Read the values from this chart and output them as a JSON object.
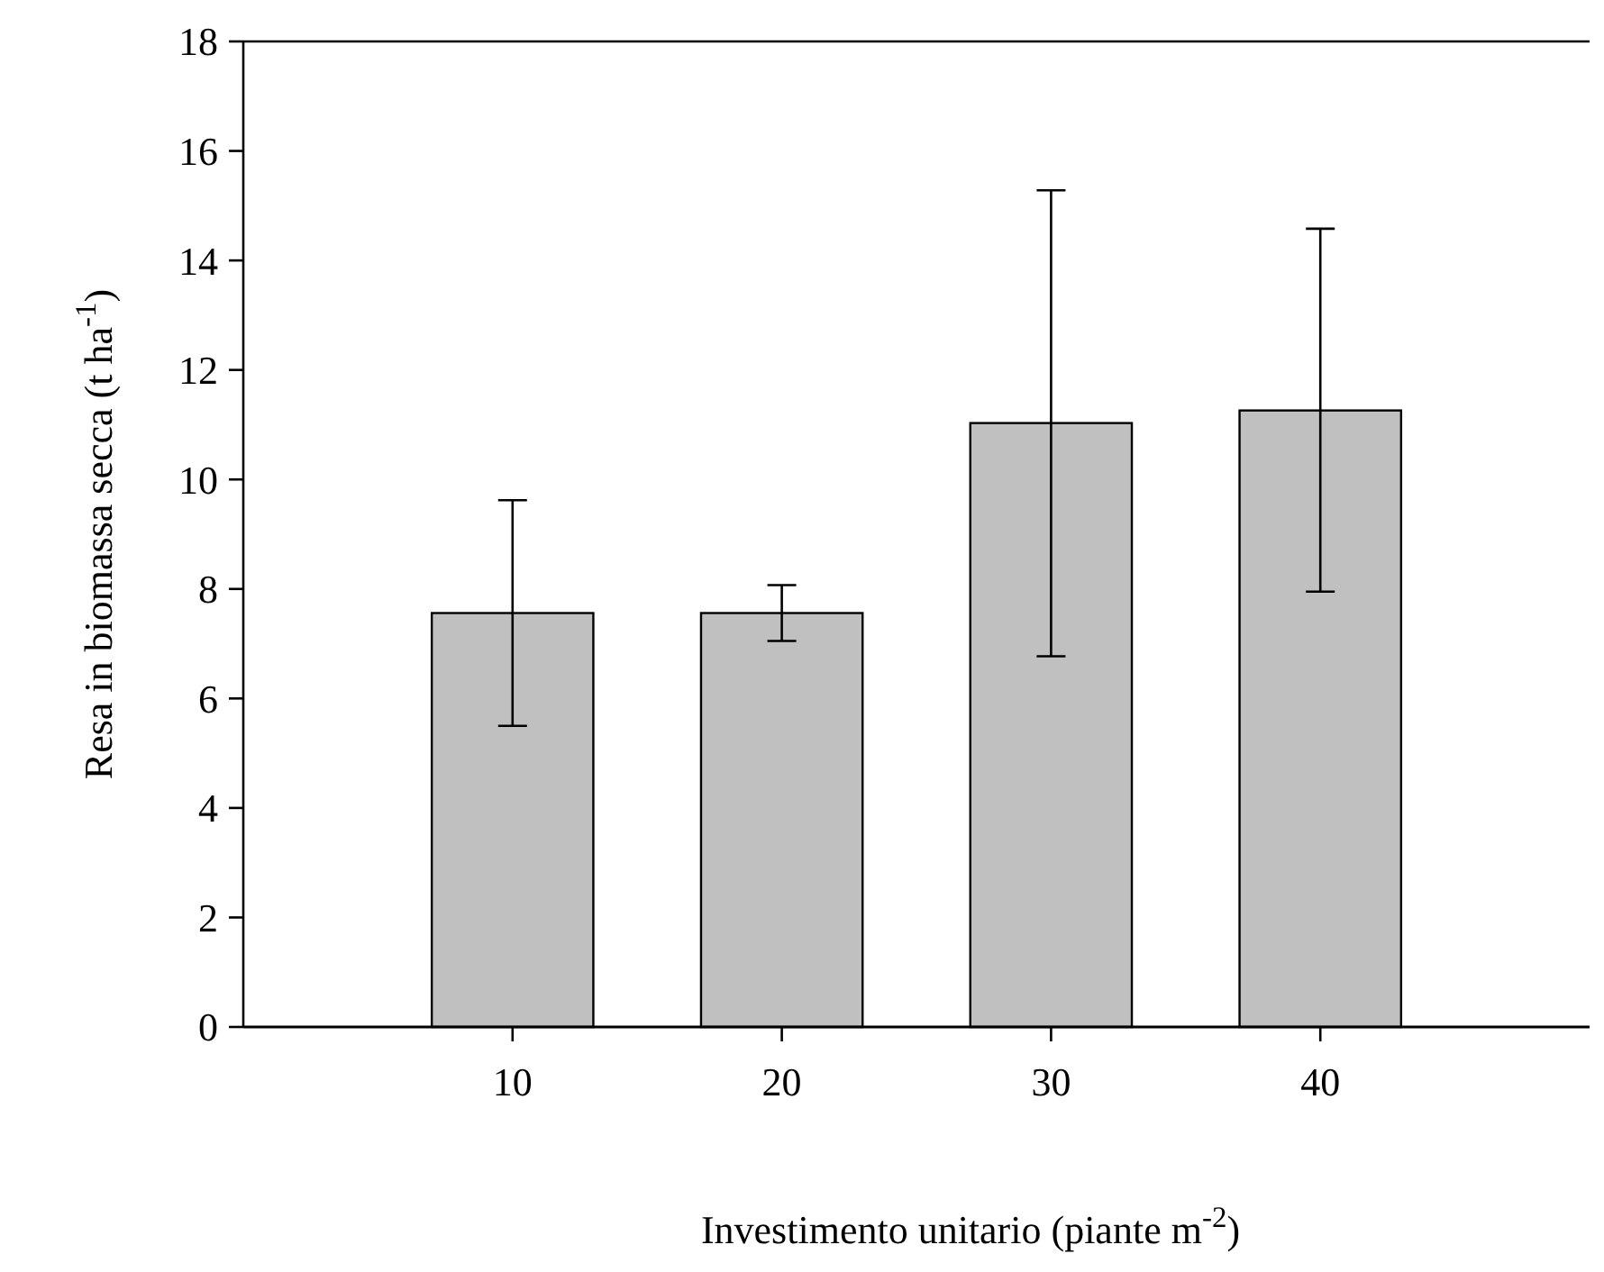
{
  "chart_data": {
    "type": "bar",
    "xlabel": "Investimento unitario (piante m$^{-2}$)",
    "ylabel": "Resa in biomassa secca (t ha$^{-1}$)",
    "categories": [
      "10",
      "20",
      "30",
      "40"
    ],
    "values": [
      7.56,
      7.56,
      11.03,
      11.26
    ],
    "errors": [
      [
        5.5,
        9.62
      ],
      [
        7.05,
        8.07
      ],
      [
        6.77,
        15.28
      ],
      [
        7.95,
        14.58
      ]
    ],
    "color": "#c0c0c0",
    "ylim": [
      0,
      18
    ],
    "yticks": [
      0,
      2,
      4,
      6,
      8,
      10,
      12,
      14,
      16,
      18
    ],
    "grid": false
  }
}
